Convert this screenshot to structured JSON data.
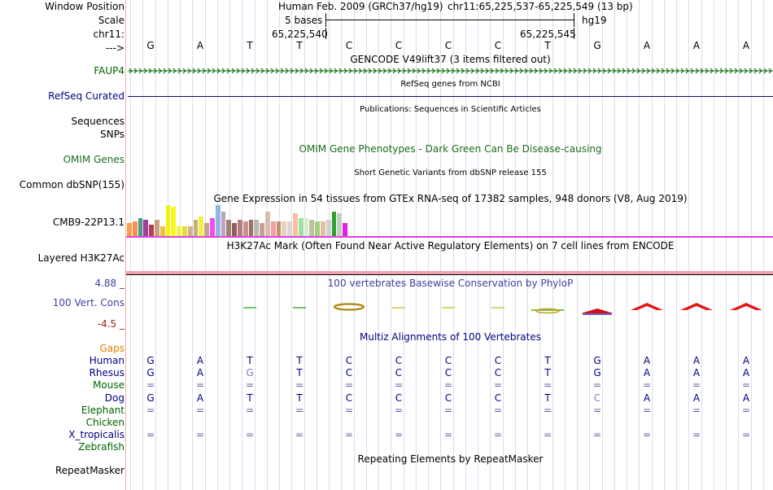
{
  "header": {
    "window_position_label": "Window Position",
    "scale_label": "Scale",
    "chrom_label": "chr11:",
    "arrow_label": "--->",
    "assembly": "Human Feb. 2009 (GRCh37/hg19)",
    "position": "chr11:65,225,537-65,225,549 (13 bp)",
    "scale_text": "5 bases",
    "db": "hg19",
    "coord_left": "65,225,540",
    "coord_right": "65,225,545"
  },
  "sequence": [
    "G",
    "A",
    "T",
    "T",
    "C",
    "C",
    "C",
    "C",
    "T",
    "G",
    "A",
    "A",
    "A"
  ],
  "tracks": {
    "gencode": {
      "title": "GENCODE V49lift37 (3 items filtered out)",
      "gene": "FAUP4"
    },
    "refseq": {
      "title": "RefSeq genes from NCBI",
      "label": "RefSeq Curated"
    },
    "publications": {
      "title": "Publications: Sequences in Scientific Articles",
      "label1": "Sequences",
      "label2": "SNPs"
    },
    "omim": {
      "title": "OMIM Gene Phenotypes - Dark Green Can Be Disease-causing",
      "label": "OMIM Genes"
    },
    "dbsnp": {
      "title": "Short Genetic Variants from dbSNP release 155",
      "label": "Common dbSNP(155)"
    },
    "gtex": {
      "title": "Gene Expression in 54 tissues from GTEx RNA-seq of 17382 samples, 948 donors (V8, Aug 2019)",
      "label": "CMB9-22P13.1"
    },
    "h3k27ac": {
      "title": "H3K27Ac Mark (Often Found Near Active Regulatory Elements) on 7 cell lines from ENCODE",
      "label": "Layered H3K27Ac"
    },
    "cons": {
      "title": "100 vertebrates Basewise Conservation by PhyloP",
      "label": "100 Vert. Cons",
      "max": "4.88 _",
      "min": "-4.5 _"
    },
    "multiz": {
      "title": "Multiz Alignments of 100 Vertebrates"
    },
    "repeat": {
      "title": "Repeating Elements by RepeatMasker",
      "label": "RepeatMasker"
    }
  },
  "alignment": {
    "gaps_label": "Gaps",
    "species": [
      {
        "name": "Human",
        "bases": [
          "G",
          "A",
          "T",
          "T",
          "C",
          "C",
          "C",
          "C",
          "T",
          "G",
          "A",
          "A",
          "A"
        ]
      },
      {
        "name": "Rhesus",
        "bases": [
          "G",
          "A",
          "G",
          "T",
          "C",
          "C",
          "C",
          "C",
          "T",
          "G",
          "A",
          "A",
          "A"
        ]
      },
      {
        "name": "Mouse",
        "bases": [
          "=",
          "=",
          "=",
          "=",
          "=",
          "=",
          "=",
          "=",
          "=",
          "=",
          "=",
          "=",
          "="
        ]
      },
      {
        "name": "Dog",
        "bases": [
          "G",
          "A",
          "T",
          "T",
          "C",
          "C",
          "C",
          "C",
          "T",
          "C",
          "A",
          "A",
          "A"
        ]
      },
      {
        "name": "Elephant",
        "bases": [
          "=",
          "=",
          "=",
          "=",
          "=",
          "=",
          "=",
          "=",
          "=",
          "=",
          "=",
          "=",
          "="
        ]
      },
      {
        "name": "Chicken",
        "bases": [
          "",
          "",
          "",
          "",
          "",
          "",
          "",
          "",
          "",
          "",
          "",
          "",
          ""
        ]
      },
      {
        "name": "X_tropicalis",
        "bases": [
          "=",
          "=",
          "=",
          "=",
          "=",
          "=",
          "=",
          "=",
          "=",
          "=",
          "=",
          "=",
          "="
        ]
      },
      {
        "name": "Zebrafish",
        "bases": [
          "",
          "",
          "",
          "",
          "",
          "",
          "",
          "",
          "",
          "",
          "",
          "",
          ""
        ]
      }
    ]
  },
  "colors": {
    "gtex_bars": [
      "#f5a04f",
      "#fa9050",
      "#4c9a8a",
      "#a0409a",
      "#b04050",
      "#c8a080",
      "#f0c040",
      "#f0f020",
      "#f8f820",
      "#f2f050",
      "#e0e030",
      "#d0b090",
      "#c0b080",
      "#f0f040",
      "#c8a090",
      "#f050f0",
      "#8fb8e0",
      "#c0a0c0",
      "#a08070",
      "#906060",
      "#b08080",
      "#c89090",
      "#a07060",
      "#b8b8b8",
      "#c8a090",
      "#d8c0b0",
      "#f0a0a0",
      "#c09070",
      "#e8d0c0",
      "#d8d8d8",
      "#f8c0a0",
      "#a0e0a0",
      "#d0f0d0",
      "#c0c0a0",
      "#a0d080",
      "#e0c0a0",
      "#d0d0d0",
      "#30a030",
      "#c0d0c0",
      "#e020e0"
    ],
    "gtex_heights": [
      0.4,
      0.45,
      0.55,
      0.5,
      0.35,
      0.5,
      0.3,
      0.95,
      0.9,
      0.3,
      0.3,
      0.3,
      0.5,
      0.6,
      0.4,
      0.55,
      0.95,
      0.75,
      0.5,
      0.4,
      0.5,
      0.45,
      0.5,
      0.5,
      0.4,
      0.75,
      0.45,
      0.45,
      0.45,
      0.45,
      0.7,
      0.55,
      0.55,
      0.5,
      0.45,
      0.45,
      0.5,
      0.75,
      0.7,
      0.4
    ]
  }
}
